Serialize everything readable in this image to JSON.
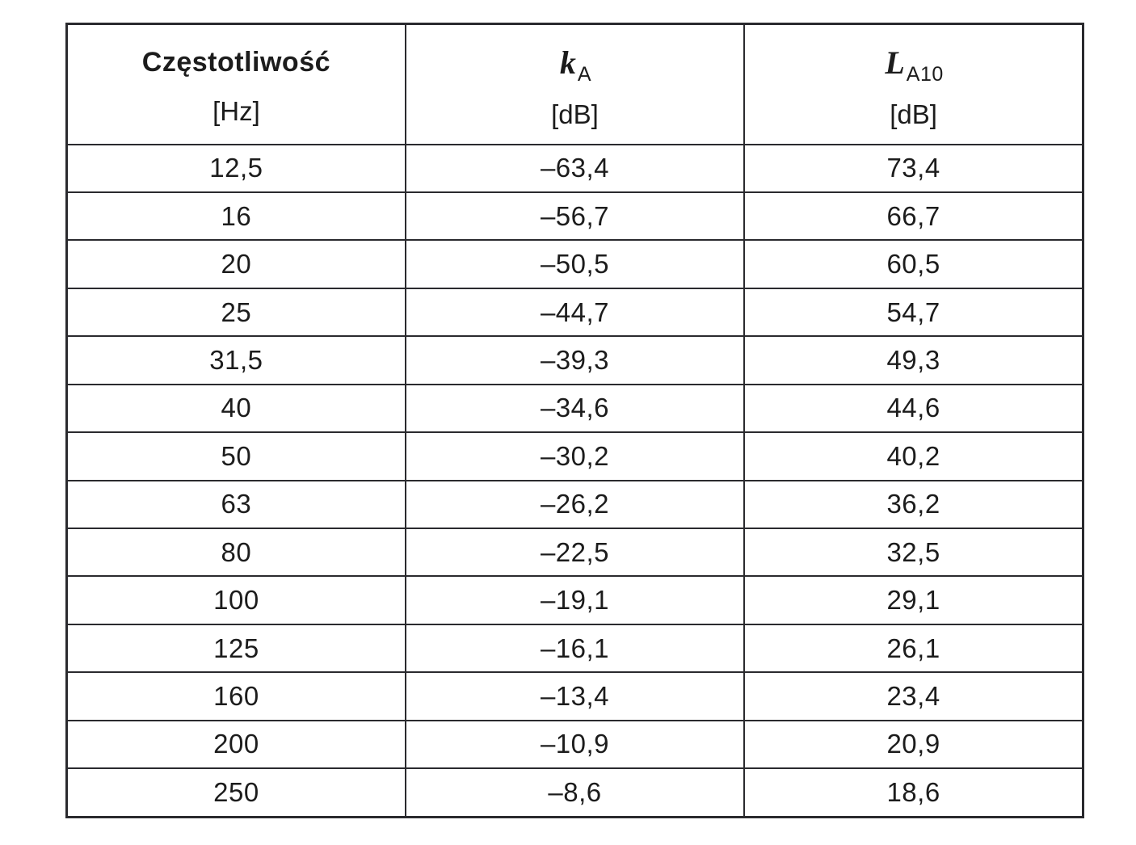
{
  "page": {
    "background_color": "#ffffff",
    "text_color": "#1c1c1c",
    "border_color": "#2a2a2e"
  },
  "table": {
    "columns": [
      {
        "title": "Częstotliwość",
        "unit": "[Hz]"
      },
      {
        "symbol": "k",
        "subscript": "A",
        "unit": "[dB]"
      },
      {
        "symbol": "L",
        "subscript": "A10",
        "unit": "[dB]"
      }
    ],
    "rows": [
      [
        "12,5",
        "–63,4",
        "73,4"
      ],
      [
        "16",
        "–56,7",
        "66,7"
      ],
      [
        "20",
        "–50,5",
        "60,5"
      ],
      [
        "25",
        "–44,7",
        "54,7"
      ],
      [
        "31,5",
        "–39,3",
        "49,3"
      ],
      [
        "40",
        "–34,6",
        "44,6"
      ],
      [
        "50",
        "–30,2",
        "40,2"
      ],
      [
        "63",
        "–26,2",
        "36,2"
      ],
      [
        "80",
        "–22,5",
        "32,5"
      ],
      [
        "100",
        "–19,1",
        "29,1"
      ],
      [
        "125",
        "–16,1",
        "26,1"
      ],
      [
        "160",
        "–13,4",
        "23,4"
      ],
      [
        "200",
        "–10,9",
        "20,9"
      ],
      [
        "250",
        "–8,6",
        "18,6"
      ]
    ]
  }
}
